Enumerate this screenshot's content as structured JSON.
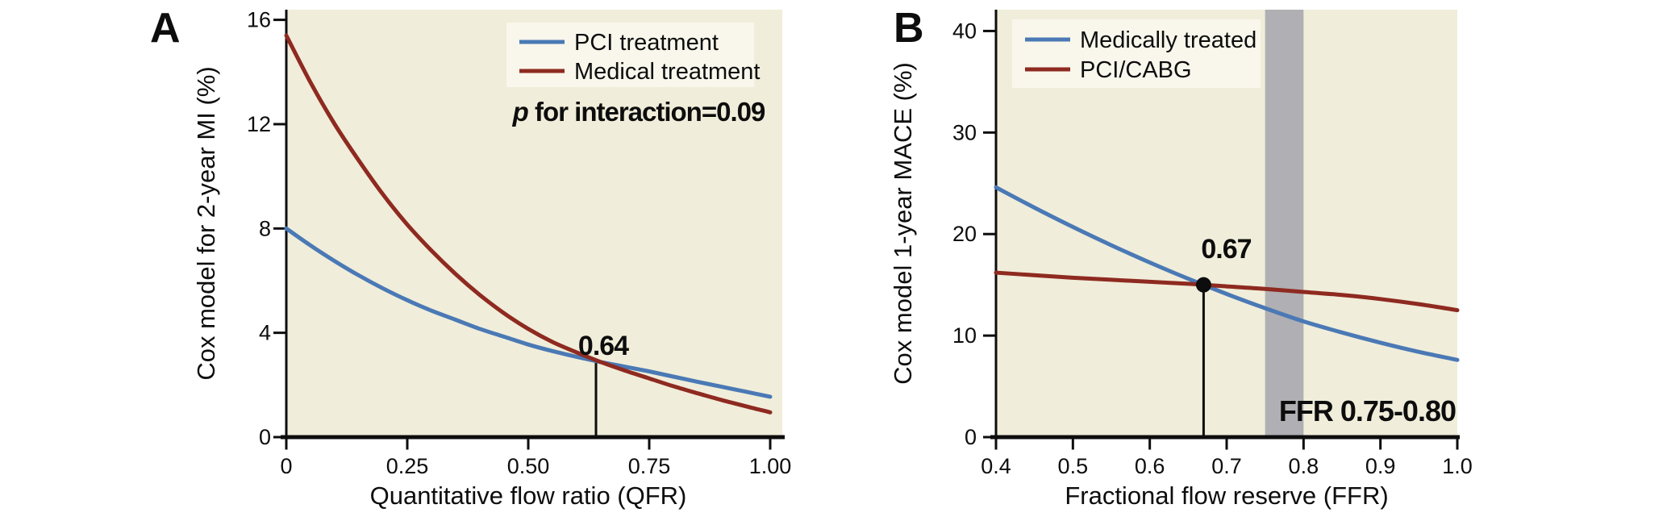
{
  "figure_title": "",
  "colors": {
    "plot_bg": "#f0edda",
    "legend_bg": "#f9f7ec",
    "band_gray": "#b0afb3",
    "axis_black": "#0d0d0d",
    "blue": "#4a79b5",
    "red": "#8e2a20"
  },
  "chart_data": [
    {
      "id": "A",
      "type": "line",
      "panel_label": "A",
      "xlabel": "Quantitative flow ratio (QFR)",
      "ylabel": "Cox model for 2-year MI (%)",
      "xlim": [
        0,
        1.025
      ],
      "ylim": [
        0,
        16.39
      ],
      "grid": false,
      "legend_position": "top-right-inside",
      "x_ticks": [
        {
          "v": 0.0,
          "label": "0"
        },
        {
          "v": 0.25,
          "label": "0.25"
        },
        {
          "v": 0.5,
          "label": "0.50"
        },
        {
          "v": 0.75,
          "label": "0.75"
        },
        {
          "v": 1.0,
          "label": "1.00"
        }
      ],
      "y_ticks": [
        {
          "v": 0,
          "label": "0"
        },
        {
          "v": 4,
          "label": "4"
        },
        {
          "v": 8,
          "label": "8"
        },
        {
          "v": 12,
          "label": "12"
        },
        {
          "v": 16,
          "label": "16"
        }
      ],
      "series": [
        {
          "name": "PCI treatment",
          "color": "#4a79b5",
          "x": [
            0,
            0.05,
            0.1,
            0.15,
            0.2,
            0.25,
            0.3,
            0.35,
            0.4,
            0.45,
            0.5,
            0.55,
            0.6,
            0.65,
            0.7,
            0.75,
            0.8,
            0.85,
            0.9,
            0.95,
            1.0
          ],
          "y": [
            8.0,
            7.35,
            6.75,
            6.2,
            5.7,
            5.25,
            4.85,
            4.5,
            4.15,
            3.85,
            3.55,
            3.3,
            3.08,
            2.88,
            2.7,
            2.52,
            2.32,
            2.12,
            1.93,
            1.74,
            1.55
          ]
        },
        {
          "name": "Medical treatment",
          "color": "#8e2a20",
          "x": [
            0,
            0.05,
            0.1,
            0.15,
            0.2,
            0.25,
            0.3,
            0.35,
            0.4,
            0.45,
            0.5,
            0.55,
            0.6,
            0.65,
            0.7,
            0.75,
            0.8,
            0.85,
            0.9,
            0.95,
            1.0
          ],
          "y": [
            15.4,
            13.6,
            12.0,
            10.6,
            9.3,
            8.15,
            7.15,
            6.25,
            5.45,
            4.75,
            4.15,
            3.65,
            3.25,
            2.88,
            2.55,
            2.25,
            1.95,
            1.68,
            1.42,
            1.18,
            0.95
          ]
        }
      ],
      "annotation": {
        "italic": "p",
        "text": " for interaction=0.09"
      },
      "marker": {
        "x": 0.64,
        "y": 2.92,
        "label": "0.64",
        "dot": false
      },
      "band": null
    },
    {
      "id": "B",
      "type": "line",
      "panel_label": "B",
      "xlabel": "Fractional flow reserve (FFR)",
      "ylabel": "Cox model 1-year MACE (%)",
      "xlim": [
        0.4,
        1.0
      ],
      "ylim": [
        0,
        42.1
      ],
      "grid": false,
      "legend_position": "top-left-inside",
      "x_ticks": [
        {
          "v": 0.4,
          "label": "0.4"
        },
        {
          "v": 0.5,
          "label": "0.5"
        },
        {
          "v": 0.6,
          "label": "0.6"
        },
        {
          "v": 0.7,
          "label": "0.7"
        },
        {
          "v": 0.8,
          "label": "0.8"
        },
        {
          "v": 0.9,
          "label": "0.9"
        },
        {
          "v": 1.0,
          "label": "1.0"
        }
      ],
      "y_ticks": [
        {
          "v": 0,
          "label": "0"
        },
        {
          "v": 10,
          "label": "10"
        },
        {
          "v": 20,
          "label": "20"
        },
        {
          "v": 30,
          "label": "30"
        },
        {
          "v": 40,
          "label": "40"
        }
      ],
      "series": [
        {
          "name": "Medically treated",
          "color": "#4a79b5",
          "x": [
            0.4,
            0.45,
            0.5,
            0.55,
            0.6,
            0.65,
            0.7,
            0.75,
            0.8,
            0.85,
            0.9,
            0.95,
            1.0
          ],
          "y": [
            24.6,
            22.6,
            20.7,
            18.9,
            17.2,
            15.6,
            14.1,
            12.7,
            11.4,
            10.3,
            9.3,
            8.4,
            7.6
          ]
        },
        {
          "name": "PCI/CABG",
          "color": "#8e2a20",
          "x": [
            0.4,
            0.45,
            0.5,
            0.55,
            0.6,
            0.65,
            0.7,
            0.75,
            0.8,
            0.85,
            0.9,
            0.95,
            1.0
          ],
          "y": [
            16.2,
            15.95,
            15.7,
            15.5,
            15.3,
            15.1,
            14.85,
            14.6,
            14.3,
            14.0,
            13.6,
            13.1,
            12.5
          ]
        }
      ],
      "annotation": null,
      "marker": {
        "x": 0.67,
        "y": 15.0,
        "label": "0.67",
        "dot": true
      },
      "band": {
        "from": 0.75,
        "to": 0.8,
        "label": "FFR 0.75-0.80"
      }
    }
  ]
}
